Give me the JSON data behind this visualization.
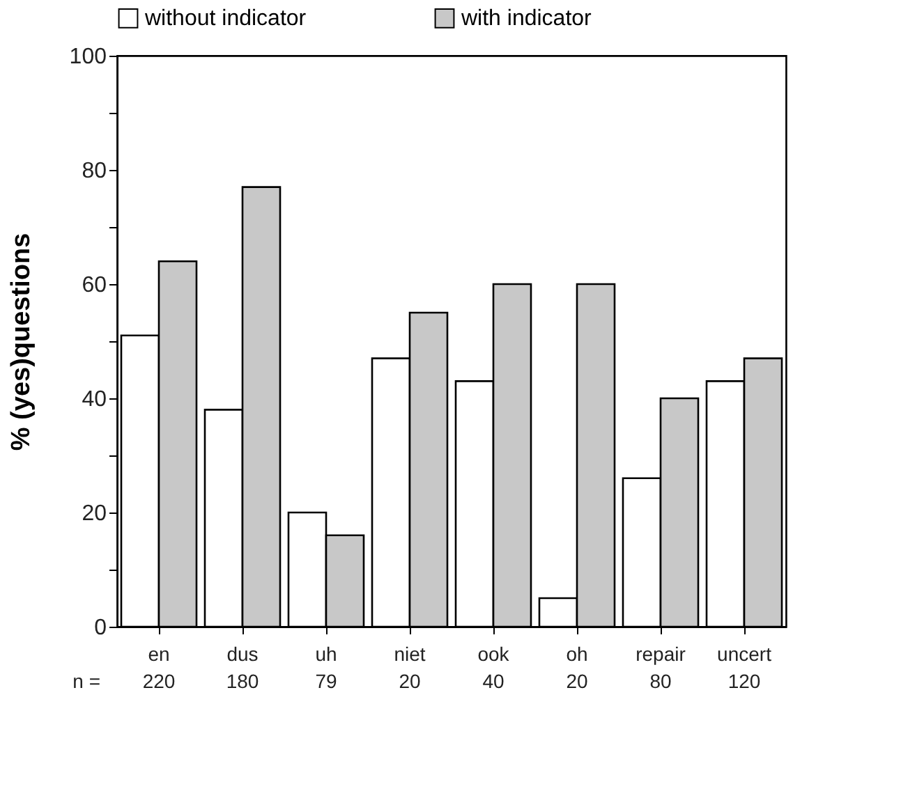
{
  "chart_data": {
    "type": "bar",
    "ylabel": "% (yes)questions",
    "categories": [
      "en",
      "dus",
      "uh",
      "niet",
      "ook",
      "oh",
      "repair",
      "uncert"
    ],
    "series": [
      {
        "name": "without indicator",
        "color": "#ffffff",
        "values": [
          51,
          38,
          20,
          47,
          43,
          5,
          26,
          43
        ]
      },
      {
        "name": "with indicator",
        "color": "#c8c8c8",
        "values": [
          64,
          77,
          16,
          55,
          60,
          60,
          40,
          47
        ]
      }
    ],
    "ylim": [
      0,
      100
    ],
    "yticks": [
      0,
      {
        "value": 10,
        "label": null
      },
      20,
      {
        "value": 30,
        "label": null
      },
      40,
      {
        "value": 50,
        "label": null
      },
      60,
      {
        "value": 70,
        "label": null
      },
      80,
      {
        "value": 90,
        "label": null
      },
      100
    ],
    "annotations": [
      "n =",
      "220",
      "180",
      "79",
      "20",
      "40",
      "20",
      "80",
      "120"
    ],
    "legend": "top",
    "grid": false
  }
}
